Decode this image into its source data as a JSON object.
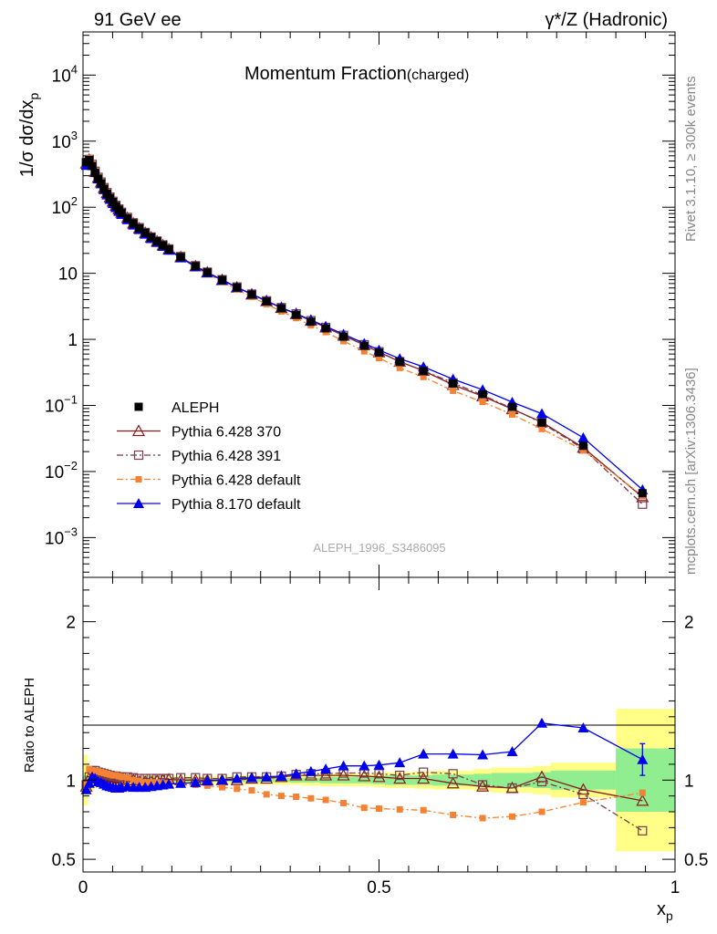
{
  "header": {
    "left": "91 GeV ee",
    "right": "γ*/Z (Hadronic)"
  },
  "side_text": {
    "top": "Rivet 3.1.10, ≥ 300k events",
    "bottom": "mcplots.cern.ch [arXiv:1306.3436]"
  },
  "chart_data": [
    {
      "type": "scatter",
      "title": "Momentum Fraction",
      "title_sub": "(charged)",
      "ylabel": "1/σ dσ/dx_p",
      "xlabel": "",
      "watermark": "ALEPH_1996_S3486095",
      "yscale": "log",
      "xlim": [
        0,
        1
      ],
      "ylim": [
        0.00025,
        45000
      ],
      "ytick_labels": [
        "10^-3",
        "10^-2",
        "10^-1",
        "1",
        "10",
        "10^2",
        "10^3",
        "10^4"
      ],
      "legend_position": "lower-left",
      "x": [
        0.0055,
        0.0105,
        0.0155,
        0.0205,
        0.0255,
        0.0305,
        0.0355,
        0.0405,
        0.0455,
        0.0505,
        0.0555,
        0.0605,
        0.065,
        0.075,
        0.085,
        0.095,
        0.105,
        0.115,
        0.125,
        0.135,
        0.145,
        0.165,
        0.19,
        0.21,
        0.235,
        0.26,
        0.285,
        0.31,
        0.335,
        0.36,
        0.385,
        0.41,
        0.44,
        0.475,
        0.5,
        0.535,
        0.575,
        0.625,
        0.675,
        0.725,
        0.775,
        0.845,
        0.945
      ],
      "series": [
        {
          "name": "ALEPH",
          "color": "#000000",
          "marker": "filled-square",
          "values": [
            480,
            520,
            420,
            330,
            270,
            230,
            190,
            160,
            138,
            120,
            104,
            92,
            82,
            68,
            57,
            48,
            41,
            35,
            30.5,
            26.5,
            23,
            17.6,
            12.8,
            10.3,
            7.9,
            6.1,
            4.75,
            3.75,
            2.95,
            2.35,
            1.85,
            1.47,
            1.1,
            0.8,
            0.63,
            0.455,
            0.33,
            0.215,
            0.148,
            0.095,
            0.055,
            0.0245,
            0.0047
          ]
        },
        {
          "name": "Pythia 6.428 370",
          "color": "#8b1a1a",
          "marker": "open-triangle",
          "line": "solid",
          "values": [
            460,
            525,
            440,
            345,
            280,
            238,
            196,
            164,
            141,
            122,
            106,
            93,
            83,
            69,
            57,
            48,
            41,
            35,
            30.4,
            26.6,
            23.1,
            17.6,
            12.8,
            10.3,
            7.9,
            6.1,
            4.8,
            3.8,
            3.0,
            2.42,
            1.92,
            1.52,
            1.14,
            0.82,
            0.64,
            0.46,
            0.335,
            0.205,
            0.138,
            0.088,
            0.056,
            0.023,
            0.0041
          ]
        },
        {
          "name": "Pythia 6.428 391",
          "color": "#7a3b4a",
          "marker": "open-square",
          "line": "dashdot",
          "values": [
            470,
            530,
            445,
            350,
            283,
            240,
            198,
            166,
            142,
            123,
            107,
            94,
            84,
            70,
            58,
            49,
            41.5,
            35.4,
            30.8,
            26.9,
            23.4,
            17.9,
            13.0,
            10.4,
            8.0,
            6.2,
            4.85,
            3.83,
            3.02,
            2.43,
            1.92,
            1.52,
            1.15,
            0.83,
            0.65,
            0.46,
            0.335,
            0.22,
            0.143,
            0.09,
            0.054,
            0.022,
            0.0032
          ]
        },
        {
          "name": "Pythia 6.428 default",
          "color": "#f58233",
          "marker": "filled-square-small",
          "line": "dashdot",
          "values": [
            465,
            555,
            445,
            350,
            285,
            240,
            199,
            167,
            143,
            123,
            107,
            94,
            84,
            69,
            57,
            48,
            40.5,
            34.5,
            30,
            26,
            22.5,
            17.2,
            12.4,
            9.9,
            7.5,
            5.7,
            4.4,
            3.4,
            2.65,
            2.1,
            1.63,
            1.29,
            0.94,
            0.66,
            0.52,
            0.37,
            0.27,
            0.167,
            0.113,
            0.073,
            0.044,
            0.021,
            0.0043
          ]
        },
        {
          "name": "Pythia 8.170 default",
          "color": "#0000ee",
          "marker": "filled-triangle",
          "line": "solid",
          "values": [
            430,
            480,
            430,
            335,
            268,
            226,
            185,
            154,
            132,
            114,
            99,
            87,
            78,
            65,
            54,
            46,
            39.2,
            33.6,
            29.4,
            25.7,
            22.4,
            17.2,
            12.6,
            10.2,
            7.9,
            6.15,
            4.83,
            3.82,
            3.03,
            2.45,
            1.96,
            1.57,
            1.2,
            0.87,
            0.69,
            0.51,
            0.385,
            0.25,
            0.173,
            0.112,
            0.075,
            0.0325,
            0.0053
          ]
        }
      ]
    },
    {
      "type": "scatter",
      "ylabel": "Ratio to ALEPH",
      "xlabel": "x_p",
      "xlim": [
        0,
        1
      ],
      "ylim": [
        0.42,
        2.28
      ],
      "ytick_labels": [
        "0.5",
        "1",
        "2"
      ],
      "xtick_labels": [
        "0",
        "0.5",
        "1"
      ],
      "x": [
        0.0055,
        0.0105,
        0.0155,
        0.0205,
        0.0255,
        0.0305,
        0.0355,
        0.0405,
        0.0455,
        0.0505,
        0.0555,
        0.0605,
        0.065,
        0.075,
        0.085,
        0.095,
        0.105,
        0.115,
        0.125,
        0.135,
        0.145,
        0.165,
        0.19,
        0.21,
        0.235,
        0.26,
        0.285,
        0.31,
        0.335,
        0.36,
        0.385,
        0.41,
        0.44,
        0.475,
        0.5,
        0.535,
        0.575,
        0.625,
        0.675,
        0.725,
        0.775,
        0.845,
        0.945
      ],
      "x_edges": [
        0,
        0.008,
        0.013,
        0.018,
        0.023,
        0.028,
        0.033,
        0.038,
        0.043,
        0.048,
        0.053,
        0.058,
        0.063,
        0.07,
        0.08,
        0.09,
        0.1,
        0.11,
        0.12,
        0.13,
        0.14,
        0.15,
        0.18,
        0.2,
        0.22,
        0.25,
        0.27,
        0.3,
        0.32,
        0.35,
        0.37,
        0.4,
        0.42,
        0.46,
        0.49,
        0.51,
        0.56,
        0.59,
        0.66,
        0.69,
        0.76,
        0.79,
        0.9,
        1.0
      ],
      "bands": {
        "stat_color": "#90ee90",
        "total_color": "#ffff88",
        "stat_half_width": [
          0.03,
          0.02,
          0.015,
          0.012,
          0.01,
          0.01,
          0.01,
          0.01,
          0.01,
          0.01,
          0.01,
          0.01,
          0.01,
          0.01,
          0.01,
          0.01,
          0.01,
          0.01,
          0.01,
          0.01,
          0.01,
          0.01,
          0.01,
          0.01,
          0.01,
          0.01,
          0.012,
          0.012,
          0.012,
          0.015,
          0.015,
          0.02,
          0.02,
          0.02,
          0.025,
          0.03,
          0.03,
          0.035,
          0.04,
          0.045,
          0.05,
          0.06,
          0.2
        ],
        "total_half_width": [
          0.16,
          0.08,
          0.06,
          0.05,
          0.04,
          0.04,
          0.035,
          0.035,
          0.03,
          0.03,
          0.03,
          0.03,
          0.03,
          0.03,
          0.03,
          0.025,
          0.025,
          0.025,
          0.025,
          0.025,
          0.025,
          0.025,
          0.025,
          0.025,
          0.025,
          0.025,
          0.03,
          0.03,
          0.03,
          0.03,
          0.035,
          0.04,
          0.04,
          0.04,
          0.045,
          0.05,
          0.055,
          0.06,
          0.07,
          0.08,
          0.09,
          0.11,
          0.45
        ]
      },
      "series": [
        {
          "name": "Pythia 6.428 370",
          "color": "#8b1a1a",
          "marker": "open-triangle",
          "line": "solid",
          "values": [
            0.96,
            1.01,
            1.05,
            1.045,
            1.035,
            1.03,
            1.03,
            1.025,
            1.02,
            1.015,
            1.015,
            1.01,
            1.01,
            1.0,
            1.0,
            0.99,
            0.99,
            0.99,
            0.995,
            1.0,
            1.005,
            1.0,
            1.0,
            1.0,
            1.0,
            1.0,
            1.01,
            1.01,
            1.02,
            1.03,
            1.03,
            1.03,
            1.03,
            1.025,
            1.02,
            1.01,
            1.01,
            0.98,
            0.96,
            0.95,
            1.02,
            0.94,
            0.87
          ]
        },
        {
          "name": "Pythia 6.428 391",
          "color": "#7a3b4a",
          "marker": "open-square",
          "line": "dashdot",
          "values": [
            0.97,
            1.02,
            1.06,
            1.06,
            1.05,
            1.045,
            1.04,
            1.035,
            1.03,
            1.025,
            1.025,
            1.02,
            1.02,
            1.02,
            1.015,
            1.01,
            1.01,
            1.01,
            1.01,
            1.01,
            1.01,
            1.015,
            1.015,
            1.01,
            1.01,
            1.02,
            1.02,
            1.02,
            1.025,
            1.035,
            1.04,
            1.04,
            1.045,
            1.045,
            1.04,
            1.03,
            1.05,
            1.04,
            0.97,
            0.95,
            0.99,
            0.91,
            0.68
          ]
        },
        {
          "name": "Pythia 6.428 default",
          "color": "#f58233",
          "marker": "filled-square-small",
          "line": "dashdot",
          "values": [
            0.97,
            1.07,
            1.06,
            1.06,
            1.055,
            1.05,
            1.045,
            1.04,
            1.035,
            1.03,
            1.03,
            1.025,
            1.02,
            1.015,
            1.0,
            0.995,
            0.985,
            0.985,
            0.985,
            0.98,
            0.98,
            0.98,
            0.97,
            0.965,
            0.955,
            0.945,
            0.935,
            0.91,
            0.9,
            0.895,
            0.885,
            0.875,
            0.855,
            0.825,
            0.82,
            0.815,
            0.81,
            0.78,
            0.76,
            0.77,
            0.8,
            0.86,
            0.92
          ]
        },
        {
          "name": "Pythia 8.170 default",
          "color": "#0000ee",
          "marker": "filled-triangle",
          "line": "solid",
          "values": [
            0.94,
            0.98,
            1.02,
            1.01,
            0.99,
            0.985,
            0.975,
            0.965,
            0.96,
            0.955,
            0.95,
            0.95,
            0.955,
            0.96,
            0.955,
            0.955,
            0.955,
            0.96,
            0.965,
            0.97,
            0.975,
            0.98,
            0.985,
            0.995,
            1.0,
            1.01,
            1.015,
            1.02,
            1.025,
            1.04,
            1.055,
            1.07,
            1.09,
            1.09,
            1.095,
            1.11,
            1.165,
            1.165,
            1.16,
            1.18,
            1.36,
            1.33,
            1.13
          ],
          "last_error": 0.1
        }
      ]
    }
  ]
}
